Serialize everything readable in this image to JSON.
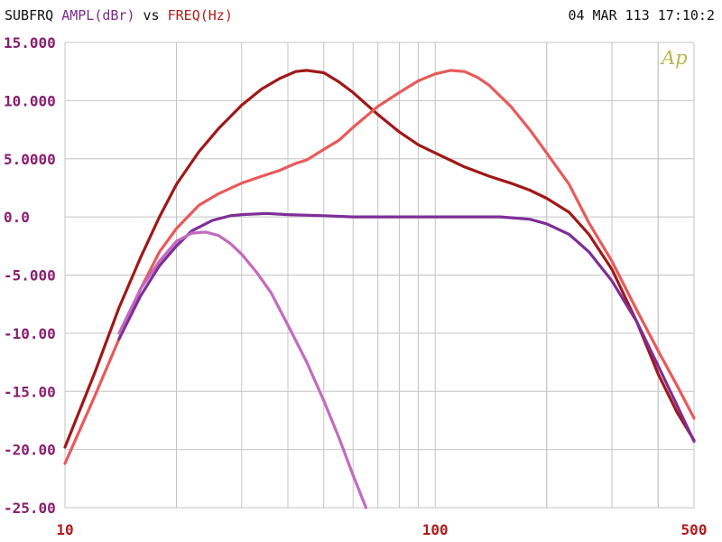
{
  "header": {
    "instrument": "SUBFRQ",
    "y_quantity": "AMPL(dBr)",
    "vs": "vs",
    "x_quantity": "FREQ(Hz)",
    "timestamp": "04 MAR 113 17:10:2",
    "logo": "Ap"
  },
  "colors": {
    "background": "#ffffff",
    "grid": "#c4c4c4",
    "y_tick": "#8a1e6e",
    "x_tick": "#b01c1c",
    "instrument_text": "#111111",
    "y_quantity_text": "#7a2a8a",
    "x_quantity_text": "#b01c1c",
    "logo": "#b8b84a"
  },
  "chart_data": {
    "type": "line",
    "x_scale": "log",
    "xlim": [
      10,
      500
    ],
    "ylim": [
      -25,
      15
    ],
    "grid": true,
    "y_tick_labels": [
      "15.000",
      "10.000",
      "5.0000",
      "0.0",
      "-5.000",
      "-10.00",
      "-15.00",
      "-20.00",
      "-25.00"
    ],
    "y_tick_values": [
      15,
      10,
      5,
      0,
      -5,
      -10,
      -15,
      -20,
      -25
    ],
    "x_tick_labels": [
      "10",
      "100",
      "500"
    ],
    "x_tick_values": [
      10,
      100,
      500
    ],
    "series": [
      {
        "color": "#a01818",
        "x": [
          10,
          12,
          14,
          16,
          18,
          20,
          23,
          26,
          30,
          34,
          38,
          42,
          45,
          50,
          55,
          60,
          70,
          80,
          90,
          100,
          120,
          140,
          160,
          180,
          200,
          230,
          260,
          300,
          350,
          400,
          450,
          500
        ],
        "y": [
          -19.8,
          -13.5,
          -7.8,
          -3.5,
          0,
          2.8,
          5.6,
          7.6,
          9.6,
          11,
          11.9,
          12.5,
          12.6,
          12.4,
          11.6,
          10.7,
          8.8,
          7.3,
          6.2,
          5.5,
          4.3,
          3.5,
          2.9,
          2.3,
          1.6,
          0.4,
          -1.5,
          -4.5,
          -9,
          -13.5,
          -16.8,
          -19.2
        ]
      },
      {
        "color": "#e85a5a",
        "x": [
          10,
          12,
          14,
          16,
          18,
          20,
          23,
          26,
          30,
          34,
          38,
          42,
          45,
          50,
          55,
          60,
          70,
          80,
          90,
          100,
          110,
          120,
          130,
          140,
          160,
          180,
          200,
          230,
          260,
          300,
          350,
          400,
          450,
          500
        ],
        "y": [
          -21.2,
          -15.5,
          -10.5,
          -6.2,
          -3,
          -1,
          1,
          2,
          2.9,
          3.5,
          4,
          4.6,
          4.9,
          5.8,
          6.6,
          7.7,
          9.5,
          10.7,
          11.7,
          12.3,
          12.6,
          12.5,
          12,
          11.3,
          9.5,
          7.5,
          5.5,
          2.8,
          -0.5,
          -3.8,
          -8,
          -11.5,
          -14.5,
          -17.3
        ]
      },
      {
        "color": "#7e2e96",
        "x": [
          14,
          16,
          18,
          20,
          22,
          25,
          28,
          30,
          35,
          40,
          50,
          60,
          70,
          80,
          100,
          150,
          180,
          200,
          230,
          260,
          300,
          350,
          400,
          450,
          500
        ],
        "y": [
          -10.5,
          -6.8,
          -4.2,
          -2.5,
          -1.2,
          -0.3,
          0.1,
          0.2,
          0.3,
          0.2,
          0.1,
          0,
          0,
          0,
          0,
          0,
          -0.2,
          -0.6,
          -1.5,
          -3,
          -5.5,
          -9,
          -12.8,
          -16.2,
          -19.3
        ]
      },
      {
        "color": "#c26ac0",
        "x": [
          14,
          16,
          18,
          20,
          22,
          24,
          26,
          28,
          30,
          33,
          36,
          40,
          45,
          50,
          55,
          60,
          65
        ],
        "y": [
          -10,
          -6.2,
          -3.8,
          -2.1,
          -1.4,
          -1.3,
          -1.6,
          -2.3,
          -3.2,
          -4.8,
          -6.5,
          -9.3,
          -12.5,
          -15.8,
          -19,
          -22.2,
          -25
        ]
      }
    ]
  }
}
